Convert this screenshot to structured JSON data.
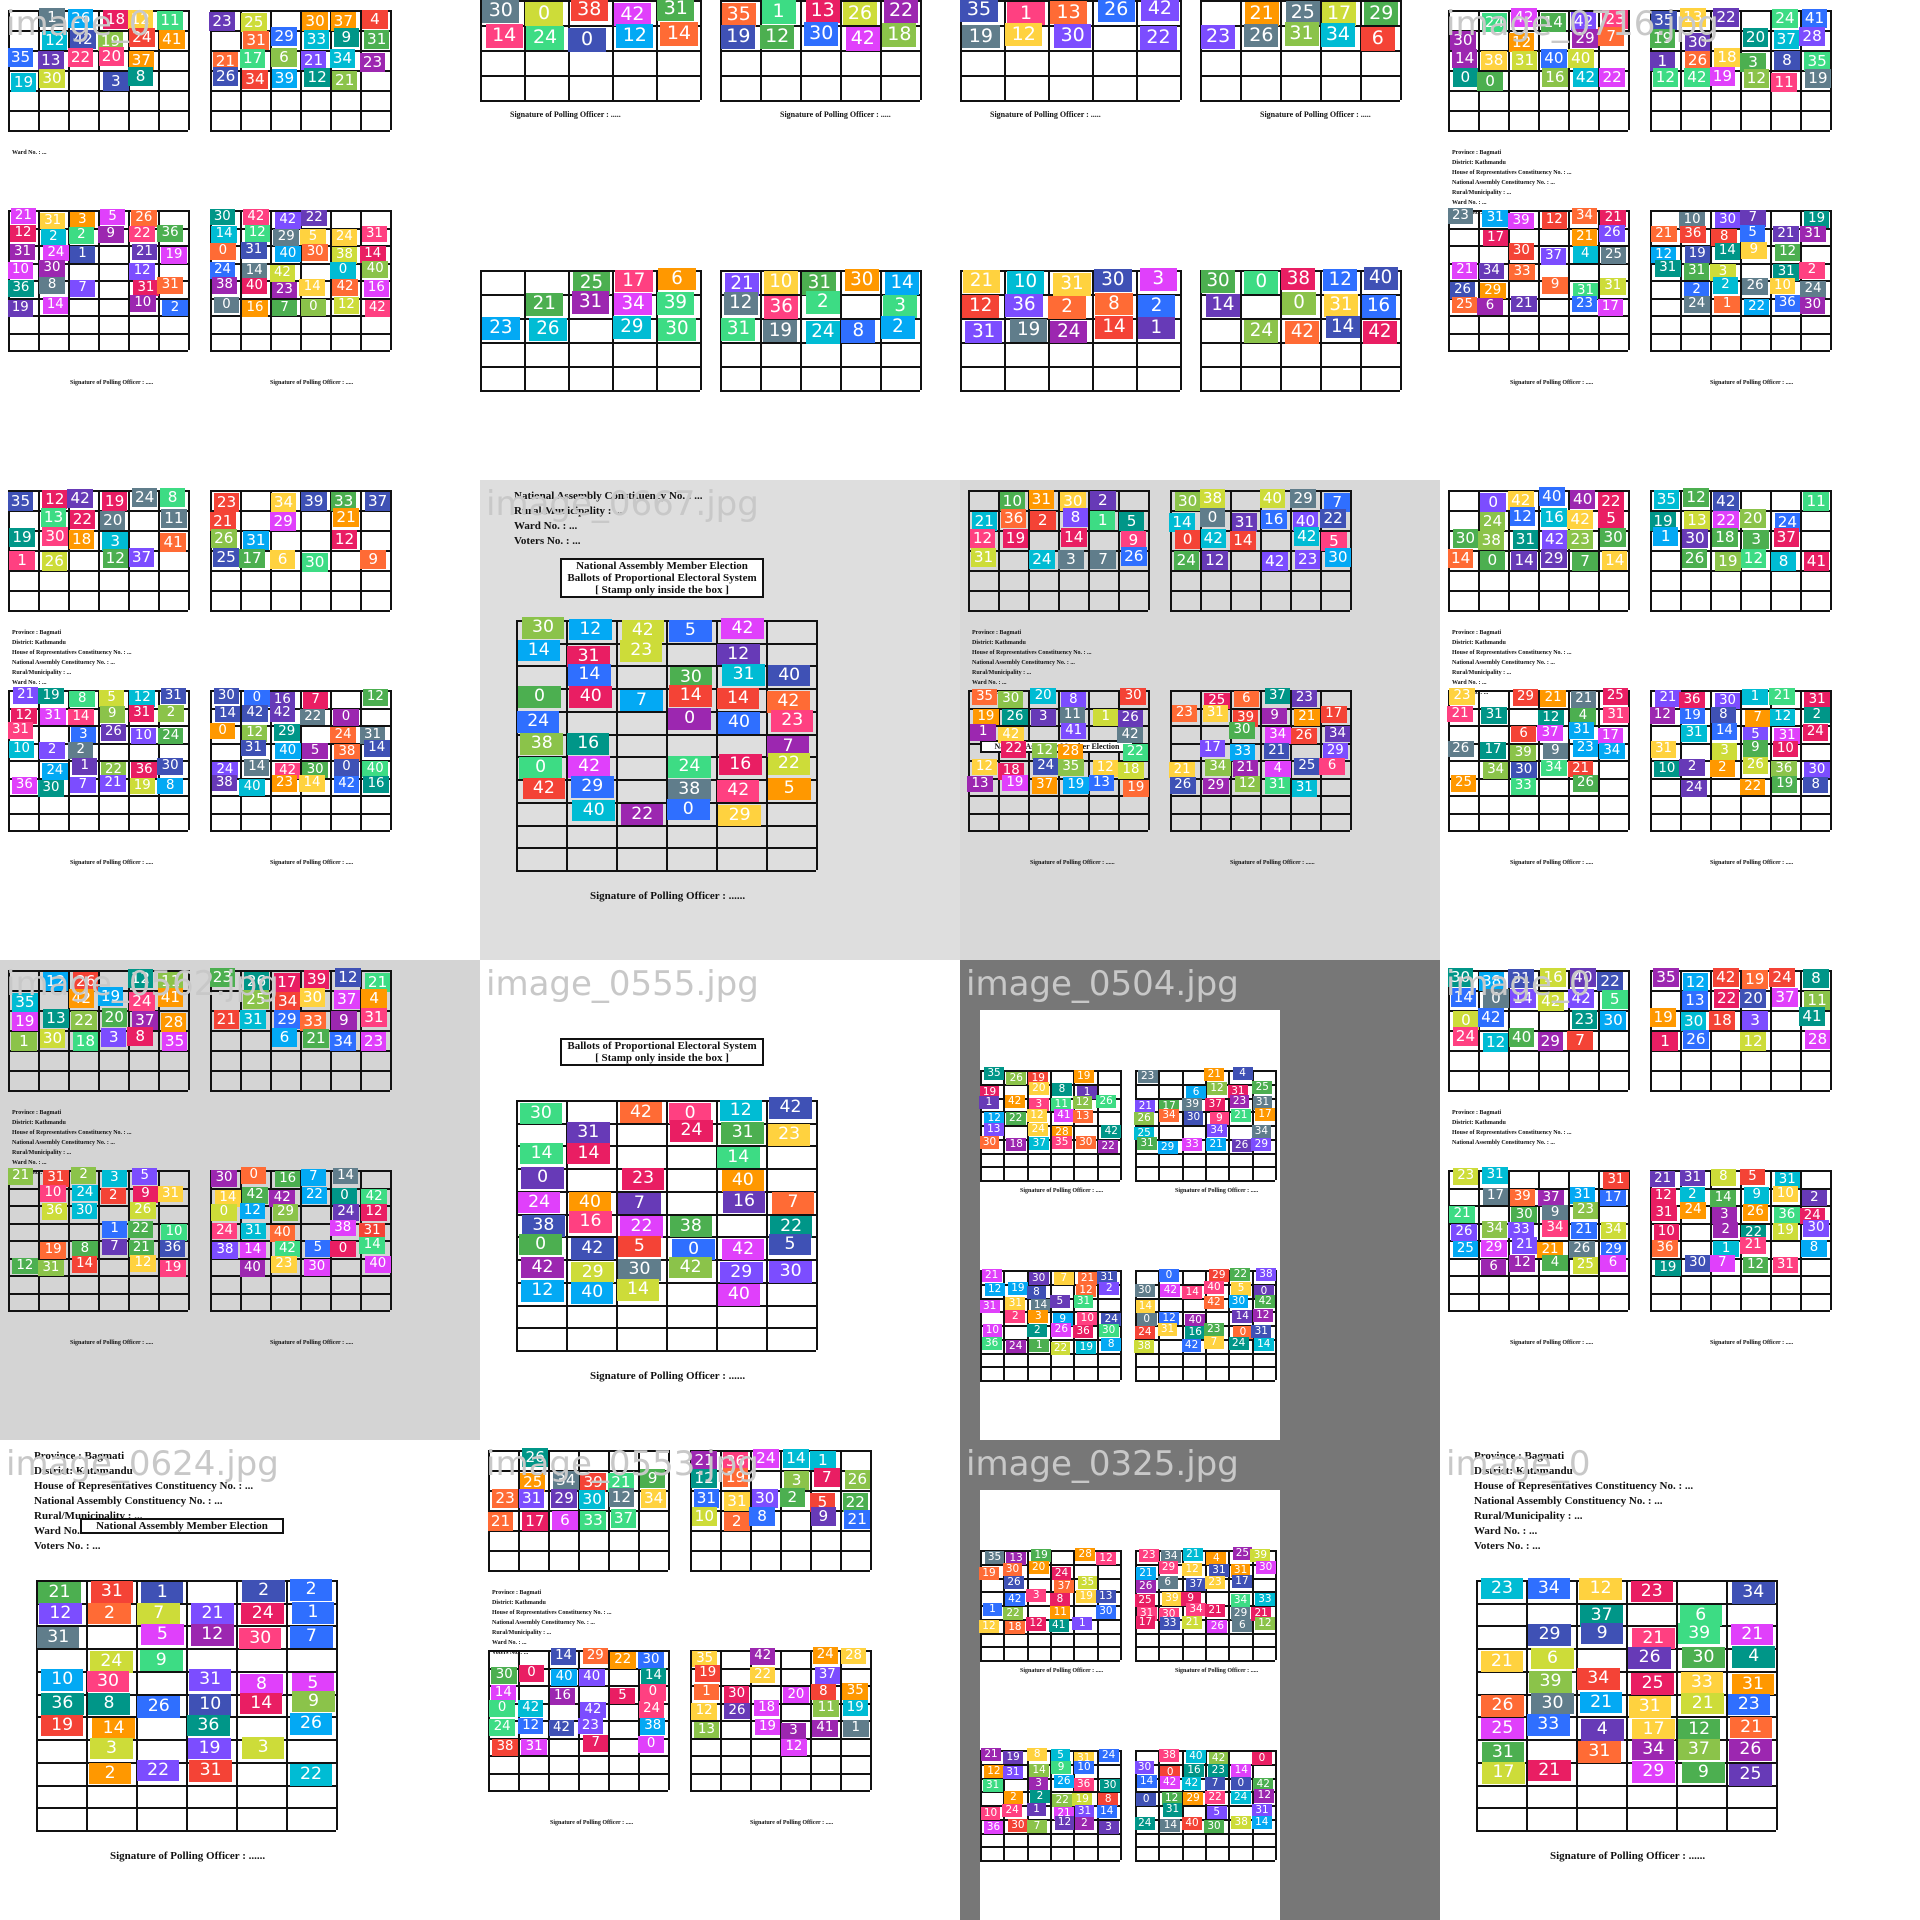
{
  "tiles": [
    {
      "name": "image_0",
      "bg": "#ffffff",
      "style": "split",
      "lines": [
        "Ward No. : ..."
      ],
      "sig": "Signature of Polling Officer : ....."
    },
    {
      "name": "",
      "bg": "#ffffff",
      "style": "top",
      "lines": [],
      "sig": "Signature of Polling Officer : ....."
    },
    {
      "name": "",
      "bg": "#ffffff",
      "style": "top",
      "lines": [],
      "sig": "Signature of Polling Officer : ....."
    },
    {
      "name": "image_0716.jpg",
      "bg": "#ffffff",
      "style": "split",
      "lines": [
        "Province : Bagmati",
        "District: Kathmandu",
        "House of Representatives Constituency No. : ...",
        "National Assembly Constituency No. : ...",
        "Rural/Municipality : ...",
        "Ward No. : ...",
        "Voters No. : ..."
      ],
      "sig": "Signature of Polling Officer : ....."
    },
    {
      "name": "",
      "bg": "#ffffff",
      "style": "split",
      "lines": [
        "Province : Bagmati",
        "District: Kathmandu",
        "House of Representatives Constituency No. : ...",
        "National Assembly Constituency No. : ...",
        "Rural/Municipality : ...",
        "Ward No. : ...",
        "Voters No. : ..."
      ],
      "sig": "Signature of Polling Officer : ....."
    },
    {
      "name": "image_0667.jpg",
      "bg": "#dedede",
      "style": "single",
      "lines": [
        "National Assembly Constituency No. : ...",
        "Rural/Municipality : ...",
        "Ward No. : ...",
        "Voters No. : ..."
      ],
      "header": [
        "National Assembly Member Election",
        "Ballots of Proportional Electoral System",
        "[ Stamp only inside the box ]"
      ],
      "sig": "Signature of Polling Officer : ......"
    },
    {
      "name": "",
      "bg": "#d8d8d8",
      "style": "split",
      "lines": [
        "Province : Bagmati",
        "District: Kathmandu",
        "House of Representatives Constituency No. : ...",
        "National Assembly Constituency No. : ...",
        "Rural/Municipality : ...",
        "Ward No. : ...",
        "Voters No. : ..."
      ],
      "header": [
        "National Assembly Member Election"
      ],
      "sig": "Signature of Polling Officer : ......"
    },
    {
      "name": "",
      "bg": "#ffffff",
      "style": "split",
      "lines": [
        "Province : Bagmati",
        "District: Kathmandu",
        "House of Representatives Constituency No. : ...",
        "National Assembly Constituency No. : ...",
        "Rural/Municipality : ...",
        "Ward No. : ...",
        "Voters No. : ..."
      ],
      "sig": "Signature of Polling Officer : ....."
    },
    {
      "name": "image_0562.jpg",
      "bg": "#d4d4d4",
      "style": "split",
      "lines": [
        "Province : Bagmati",
        "District: Kathmandu",
        "House of Representatives Constituency No. : ...",
        "National Assembly Constituency No. : ...",
        "Rural/Municipality : ...",
        "Ward No. : ...",
        "Voters No. : ..."
      ],
      "sig": "Signature of Polling Officer : ....."
    },
    {
      "name": "image_0555.jpg",
      "bg": "#ffffff",
      "style": "single",
      "lines": [],
      "header": [
        "Ballots of Proportional Electoral System",
        "[ Stamp only inside the box ]"
      ],
      "sig": "Signature of Polling Officer : ......"
    },
    {
      "name": "image_0504.jpg",
      "bg": "#777777",
      "style": "quad",
      "lines": [],
      "sig": "Signature of Polling Officer : ....."
    },
    {
      "name": "image_0",
      "bg": "#ffffff",
      "style": "split",
      "lines": [
        "Province : Bagmati",
        "District: Kathmandu",
        "House of Representatives Constituency No. : ...",
        "National Assembly Constituency No. : ..."
      ],
      "sig": "Signature of Polling Officer : ....."
    },
    {
      "name": "image_0624.jpg",
      "bg": "#ffffff",
      "style": "single",
      "lines": [
        "Province : Bagmati",
        "District: Kathmandu",
        "House of Representatives Constituency No. : ...",
        "National Assembly Constituency No. : ...",
        "Rural/Municipality : ...",
        "Ward No. : ...",
        "Voters No. : ..."
      ],
      "header": [
        "National Assembly Member Election"
      ],
      "sig": "Signature of Polling Officer : ......"
    },
    {
      "name": "image_0553.jpg",
      "bg": "#ffffff",
      "style": "split",
      "lines": [
        "Province : Bagmati",
        "District: Kathmandu",
        "House of Representatives Constituency No. : ...",
        "National Assembly Constituency No. : ...",
        "Rural/Municipality : ...",
        "Ward No. : ...",
        "Voters No. : ..."
      ],
      "sig": "Signature of Polling Officer : ....."
    },
    {
      "name": "image_0325.jpg",
      "bg": "#777777",
      "style": "quad",
      "lines": [],
      "sig": "Signature of Polling Officer : ....."
    },
    {
      "name": "image_0",
      "bg": "#ffffff",
      "style": "single",
      "lines": [
        "Province : Bagmati",
        "District: Kathmandu",
        "House of Representatives Constituency No. : ...",
        "National Assembly Constituency No. : ...",
        "Rural/Municipality : ...",
        "Ward No. : ...",
        "Voters No. : ..."
      ],
      "sig": "Signature of Polling Officer : ......"
    }
  ],
  "palette": [
    "#ff6b35",
    "#3ddc84",
    "#2f6fff",
    "#ffd23f",
    "#e040fb",
    "#00bcd4",
    "#8bc34a",
    "#ff4081",
    "#7c4dff",
    "#009688",
    "#f44336",
    "#cddc39",
    "#3f51b5",
    "#ff9800",
    "#4caf50",
    "#9c27b0",
    "#03a9f4",
    "#e91e63",
    "#607d8b",
    "#673ab7"
  ],
  "labels": [
    [
      21,
      12,
      31,
      10,
      36,
      19,
      31,
      2,
      24,
      30,
      8,
      14,
      3,
      2,
      1,
      7,
      5,
      9,
      26,
      22
    ],
    [
      30,
      14,
      0,
      24,
      38,
      0,
      42,
      12,
      31,
      14,
      40,
      16,
      42,
      29,
      40,
      42,
      23,
      7,
      22,
      5
    ],
    [
      35,
      19,
      1,
      12,
      13,
      30,
      26,
      42,
      22,
      18,
      19,
      20,
      3,
      12,
      24,
      37,
      8,
      11,
      41,
      28
    ],
    [
      23,
      21,
      26,
      25,
      31,
      17,
      34,
      29,
      6,
      39,
      30,
      33,
      21,
      12,
      37,
      9,
      34,
      21,
      4,
      31
    ]
  ]
}
